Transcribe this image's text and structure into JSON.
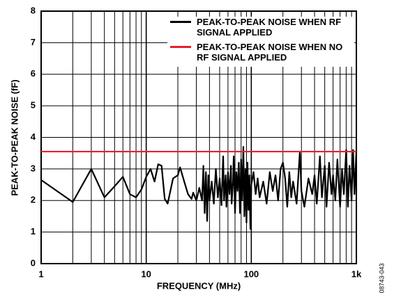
{
  "chart_data": {
    "type": "line",
    "xlabel": "FREQUENCY (MHz)",
    "ylabel": "PEAK-TO-PEAK NOISE (fF)",
    "figure_id": "08743-043",
    "xscale": "log",
    "grid": true,
    "legend": "upper right",
    "xlim": [
      1,
      1000
    ],
    "ylim": [
      0,
      8
    ],
    "xticks": [
      {
        "value": 1,
        "label": "1"
      },
      10,
      100,
      {
        "value": 1000,
        "label": "1k"
      }
    ],
    "xminorticks": [
      2,
      3,
      4,
      5,
      6,
      7,
      8,
      9,
      20,
      30,
      40,
      50,
      60,
      70,
      80,
      90,
      200,
      300,
      400,
      500,
      600,
      700,
      800,
      900
    ],
    "yticks": [
      0,
      1,
      2,
      3,
      4,
      5,
      6,
      7,
      8
    ],
    "series": [
      {
        "name": "PEAK-TO-PEAK NOISE WHEN RF SIGNAL APPLIED",
        "color": "#000000",
        "x": [
          1,
          2,
          3,
          4,
          5,
          6,
          7,
          8,
          9,
          10,
          11,
          12,
          13,
          14,
          15,
          16,
          18,
          20,
          21,
          23,
          25,
          27,
          28,
          30,
          32,
          34,
          35,
          36,
          37,
          38,
          39,
          40,
          42,
          44,
          46,
          48,
          50,
          52,
          54,
          55,
          57,
          58,
          60,
          62,
          64,
          65,
          67,
          68,
          70,
          72,
          74,
          76,
          78,
          80,
          82,
          84,
          86,
          88,
          90,
          92,
          94,
          96,
          98,
          100,
          105,
          110,
          115,
          120,
          130,
          140,
          150,
          160,
          170,
          180,
          190,
          200,
          210,
          220,
          230,
          240,
          250,
          270,
          290,
          300,
          320,
          350,
          380,
          400,
          420,
          450,
          470,
          500,
          520,
          550,
          580,
          600,
          630,
          660,
          700,
          730,
          760,
          800,
          830,
          860,
          900,
          930,
          960,
          1000
        ],
        "values": [
          2.65,
          1.95,
          3.0,
          2.1,
          2.45,
          2.75,
          2.2,
          2.1,
          2.35,
          2.75,
          3.0,
          2.6,
          3.15,
          3.1,
          2.05,
          1.9,
          2.7,
          2.8,
          3.05,
          2.6,
          2.2,
          2.05,
          2.25,
          2.0,
          2.4,
          2.0,
          3.1,
          1.6,
          2.9,
          1.35,
          2.8,
          2.0,
          2.6,
          1.9,
          3.0,
          2.1,
          2.7,
          1.85,
          3.4,
          2.0,
          2.8,
          1.8,
          2.9,
          2.2,
          3.1,
          1.9,
          2.6,
          3.4,
          1.6,
          2.9,
          2.3,
          3.2,
          1.6,
          3.3,
          2.0,
          3.7,
          1.5,
          3.0,
          1.3,
          3.2,
          1.7,
          2.8,
          1.1,
          2.5,
          2.9,
          2.2,
          2.7,
          2.1,
          2.6,
          1.9,
          2.9,
          2.3,
          2.8,
          2.0,
          3.0,
          3.2,
          2.7,
          1.8,
          2.9,
          2.1,
          2.6,
          1.9,
          3.55,
          2.3,
          1.8,
          2.7,
          2.2,
          2.8,
          1.9,
          3.4,
          2.1,
          3.1,
          1.8,
          3.2,
          2.2,
          2.8,
          2.0,
          3.3,
          1.8,
          3.0,
          2.2,
          3.6,
          1.8,
          3.1,
          2.0,
          3.6,
          2.2,
          3.6
        ]
      },
      {
        "name": "PEAK-TO-PEAK NOISE WHEN NO RF SIGNAL APPLIED",
        "color": "#e8202a",
        "x": [
          1,
          1000
        ],
        "values": [
          3.55,
          3.55
        ]
      }
    ]
  }
}
